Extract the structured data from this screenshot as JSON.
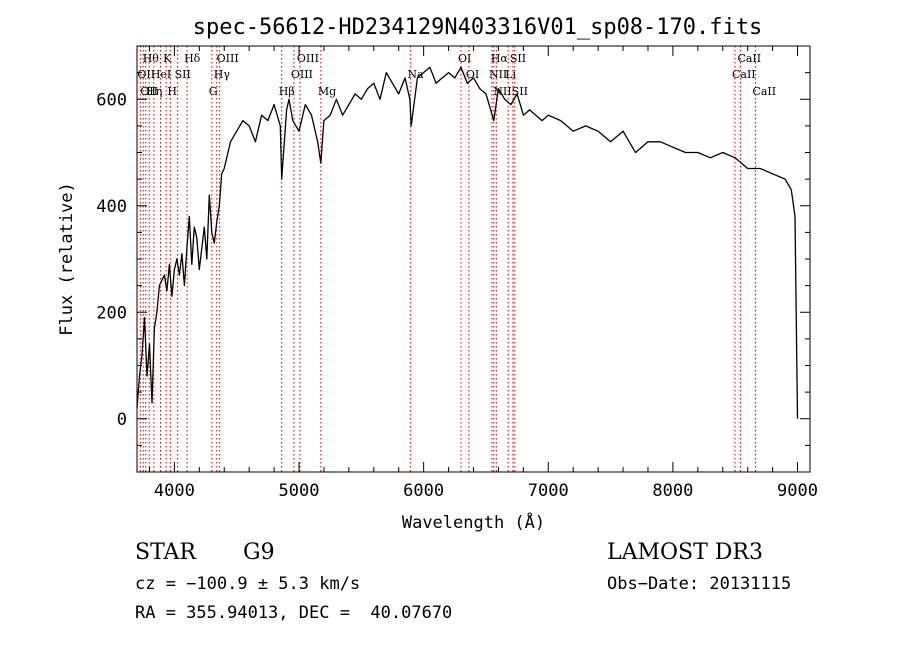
{
  "chart_data": {
    "type": "line",
    "title": "spec-56612-HD234129N403316V01_sp08-170.fits",
    "xlabel": "Wavelength (Å)",
    "ylabel": "Flux (relative)",
    "xlim": [
      3700,
      9100
    ],
    "ylim": [
      -100,
      700
    ],
    "xticks": [
      {
        "value": 4000,
        "label": "4000"
      },
      {
        "value": 5000,
        "label": "5000"
      },
      {
        "value": 6000,
        "label": "6000"
      },
      {
        "value": 7000,
        "label": "7000"
      },
      {
        "value": 8000,
        "label": "8000"
      },
      {
        "value": 9000,
        "label": "9000"
      }
    ],
    "yticks": [
      {
        "value": 0,
        "label": "0"
      },
      {
        "value": 200,
        "label": "200"
      },
      {
        "value": 400,
        "label": "400"
      },
      {
        "value": 600,
        "label": "600"
      }
    ],
    "series": [
      {
        "name": "flux",
        "x": [
          3700,
          3720,
          3740,
          3760,
          3780,
          3800,
          3820,
          3840,
          3860,
          3880,
          3900,
          3920,
          3940,
          3960,
          3980,
          4000,
          4020,
          4040,
          4060,
          4080,
          4100,
          4120,
          4140,
          4160,
          4180,
          4200,
          4220,
          4240,
          4260,
          4280,
          4300,
          4320,
          4340,
          4360,
          4380,
          4400,
          4450,
          4500,
          4550,
          4600,
          4650,
          4700,
          4750,
          4800,
          4850,
          4861,
          4900,
          4920,
          4950,
          5000,
          5050,
          5100,
          5150,
          5175,
          5200,
          5250,
          5300,
          5350,
          5400,
          5450,
          5500,
          5550,
          5600,
          5650,
          5700,
          5750,
          5800,
          5850,
          5890,
          5900,
          5950,
          6000,
          6050,
          6100,
          6150,
          6200,
          6250,
          6300,
          6350,
          6400,
          6450,
          6500,
          6563,
          6600,
          6650,
          6700,
          6750,
          6800,
          6850,
          6900,
          6950,
          7000,
          7100,
          7200,
          7300,
          7400,
          7500,
          7600,
          7700,
          7800,
          7900,
          8000,
          8100,
          8200,
          8300,
          8400,
          8500,
          8600,
          8700,
          8800,
          8900,
          8950,
          8980,
          9000
        ],
        "values": [
          20,
          80,
          120,
          190,
          80,
          140,
          30,
          170,
          200,
          250,
          260,
          270,
          240,
          290,
          230,
          280,
          300,
          270,
          310,
          250,
          320,
          380,
          290,
          360,
          340,
          280,
          320,
          360,
          300,
          420,
          350,
          330,
          370,
          400,
          460,
          470,
          520,
          540,
          560,
          550,
          520,
          570,
          560,
          590,
          550,
          450,
          580,
          600,
          560,
          540,
          590,
          570,
          520,
          480,
          560,
          570,
          600,
          570,
          590,
          610,
          600,
          620,
          630,
          600,
          650,
          630,
          610,
          640,
          600,
          550,
          640,
          650,
          660,
          630,
          640,
          650,
          640,
          660,
          630,
          640,
          620,
          610,
          560,
          620,
          600,
          590,
          610,
          570,
          580,
          570,
          560,
          570,
          560,
          540,
          550,
          540,
          520,
          540,
          500,
          520,
          520,
          510,
          500,
          500,
          490,
          500,
          490,
          470,
          470,
          460,
          450,
          430,
          380,
          0
        ]
      }
    ],
    "lines": [
      {
        "wl": 3727,
        "label": "OII",
        "row": 2
      },
      {
        "wl": 3750,
        "label": "OII",
        "row": 3
      },
      {
        "wl": 3770,
        "label": "Hθ",
        "row": 1
      },
      {
        "wl": 3798,
        "label": "Hη",
        "row": 3
      },
      {
        "wl": 3835,
        "label": "HeI",
        "row": 2
      },
      {
        "wl": 3889,
        "label": "",
        "row": 0
      },
      {
        "wl": 3934,
        "label": "K",
        "row": 1
      },
      {
        "wl": 3968,
        "label": "H",
        "row": 3
      },
      {
        "wl": 4026,
        "label": "SII",
        "row": 2
      },
      {
        "wl": 4102,
        "label": "Hδ",
        "row": 1
      },
      {
        "wl": 4300,
        "label": "G",
        "row": 3
      },
      {
        "wl": 4340,
        "label": "Hγ",
        "row": 2
      },
      {
        "wl": 4363,
        "label": "OIII",
        "row": 1
      },
      {
        "wl": 4861,
        "label": "Hβ",
        "row": 3
      },
      {
        "wl": 4959,
        "label": "OIII",
        "row": 2
      },
      {
        "wl": 5007,
        "label": "OIII",
        "row": 1
      },
      {
        "wl": 5175,
        "label": "Mg",
        "row": 3
      },
      {
        "wl": 5893,
        "label": "Na",
        "row": 2
      },
      {
        "wl": 6300,
        "label": "OI",
        "row": 1
      },
      {
        "wl": 6363,
        "label": "OI",
        "row": 2
      },
      {
        "wl": 6548,
        "label": "NII",
        "row": 2
      },
      {
        "wl": 6563,
        "label": "Hα",
        "row": 1
      },
      {
        "wl": 6583,
        "label": "NII",
        "row": 3
      },
      {
        "wl": 6678,
        "label": "Li",
        "row": 2
      },
      {
        "wl": 6716,
        "label": "SII",
        "row": 1
      },
      {
        "wl": 6731,
        "label": "SII",
        "row": 3
      },
      {
        "wl": 8498,
        "label": "CaII",
        "row": 2
      },
      {
        "wl": 8542,
        "label": "CaII",
        "row": 1
      },
      {
        "wl": 8662,
        "label": "CaII",
        "row": 3
      }
    ]
  },
  "info": {
    "class": "STAR",
    "subclass": "G9",
    "survey": "LAMOST DR3",
    "cz": "cz = −100.9 ± 5.3 km/s",
    "obs_date": "Obs−Date: 20131115",
    "coords": "RA = 355.94013, DEC =  40.07670"
  }
}
